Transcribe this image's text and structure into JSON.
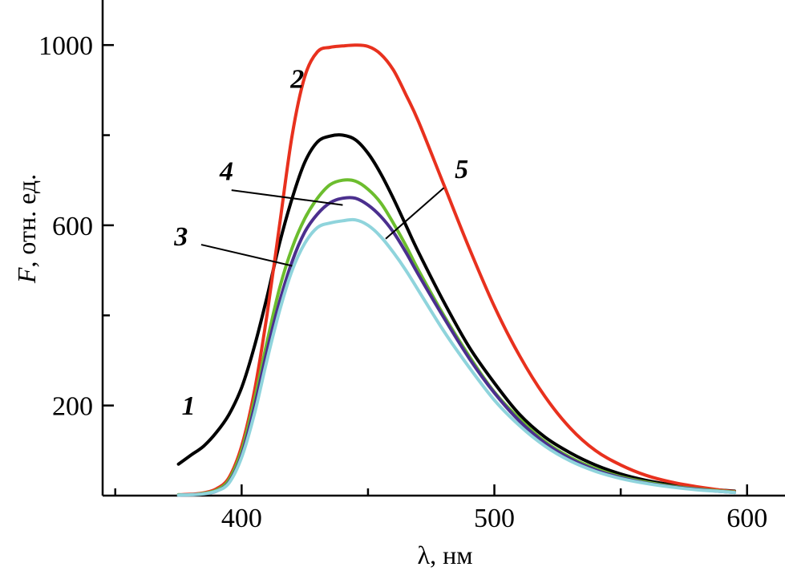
{
  "chart_data": {
    "type": "line",
    "title": "",
    "xlabel": "λ, нм",
    "ylabel_italic": "F",
    "ylabel_rest": ", отн. ед.",
    "xlim": [
      345,
      615
    ],
    "ylim": [
      0,
      1100
    ],
    "x_ticks": [
      400,
      500,
      600
    ],
    "x_minor_ticks": [
      350,
      450,
      550
    ],
    "y_ticks": [
      200,
      600,
      1000
    ],
    "y_minor_ticks": [
      400,
      800
    ],
    "grid": false,
    "series": [
      {
        "name": "1",
        "color": "#000000",
        "x": [
          375,
          380,
          385,
          390,
          395,
          400,
          405,
          410,
          415,
          420,
          425,
          430,
          435,
          440,
          445,
          450,
          455,
          460,
          465,
          470,
          480,
          490,
          500,
          510,
          520,
          530,
          540,
          550,
          560,
          570,
          580,
          590,
          595
        ],
        "y": [
          70,
          90,
          110,
          140,
          180,
          240,
          330,
          440,
          560,
          660,
          740,
          785,
          798,
          800,
          790,
          760,
          715,
          660,
          600,
          540,
          430,
          330,
          250,
          180,
          130,
          95,
          68,
          48,
          34,
          24,
          17,
          12,
          10
        ]
      },
      {
        "name": "2",
        "color": "#e8311e",
        "x": [
          375,
          380,
          385,
          390,
          395,
          400,
          405,
          410,
          415,
          420,
          425,
          430,
          435,
          440,
          445,
          450,
          455,
          460,
          465,
          470,
          480,
          490,
          500,
          510,
          520,
          530,
          540,
          550,
          560,
          570,
          580,
          590,
          595
        ],
        "y": [
          2,
          3,
          6,
          15,
          40,
          110,
          230,
          400,
          600,
          800,
          930,
          985,
          995,
          998,
          1000,
          997,
          980,
          945,
          890,
          830,
          690,
          550,
          420,
          310,
          220,
          150,
          100,
          68,
          45,
          30,
          20,
          12,
          9
        ]
      },
      {
        "name": "3",
        "color": "#6cbd2e",
        "x": [
          375,
          380,
          385,
          390,
          395,
          400,
          405,
          410,
          415,
          420,
          425,
          430,
          435,
          440,
          445,
          450,
          455,
          460,
          465,
          470,
          480,
          490,
          500,
          510,
          520,
          530,
          540,
          550,
          560,
          570,
          580,
          590,
          595
        ],
        "y": [
          2,
          2,
          5,
          12,
          35,
          100,
          210,
          340,
          460,
          550,
          615,
          660,
          690,
          700,
          698,
          680,
          650,
          605,
          555,
          500,
          400,
          310,
          230,
          170,
          120,
          85,
          60,
          42,
          30,
          21,
          15,
          10,
          8
        ]
      },
      {
        "name": "4",
        "color": "#4b2f8e",
        "x": [
          375,
          380,
          385,
          390,
          395,
          400,
          405,
          410,
          415,
          420,
          425,
          430,
          435,
          440,
          445,
          450,
          455,
          460,
          465,
          470,
          480,
          490,
          500,
          510,
          520,
          530,
          540,
          550,
          560,
          570,
          580,
          590,
          595
        ],
        "y": [
          1,
          2,
          4,
          10,
          30,
          90,
          195,
          320,
          430,
          520,
          585,
          625,
          650,
          660,
          660,
          645,
          620,
          585,
          540,
          490,
          395,
          305,
          228,
          165,
          117,
          82,
          57,
          40,
          28,
          20,
          14,
          9,
          7
        ]
      },
      {
        "name": "5",
        "color": "#8fd4dc",
        "x": [
          375,
          380,
          385,
          390,
          395,
          400,
          405,
          410,
          415,
          420,
          425,
          430,
          435,
          440,
          445,
          450,
          455,
          460,
          465,
          470,
          480,
          490,
          500,
          510,
          520,
          530,
          540,
          550,
          560,
          570,
          580,
          590,
          595
        ],
        "y": [
          1,
          2,
          4,
          10,
          28,
          85,
          180,
          300,
          410,
          500,
          560,
          595,
          605,
          610,
          612,
          600,
          575,
          540,
          500,
          455,
          365,
          285,
          212,
          155,
          110,
          77,
          54,
          38,
          27,
          19,
          13,
          9,
          7
        ]
      }
    ],
    "annotations": [
      {
        "text": "1",
        "x": 379,
        "y": 180,
        "target": null
      },
      {
        "text": "2",
        "x": 422,
        "y": 905,
        "target": null
      },
      {
        "text": "4",
        "x": 394,
        "y": 700,
        "tx": 396,
        "ty": 678,
        "target": [
          440,
          645
        ]
      },
      {
        "text": "3",
        "x": 376,
        "y": 555,
        "tx": 384,
        "ty": 557,
        "target": [
          420,
          510
        ]
      },
      {
        "text": "5",
        "x": 487,
        "y": 705,
        "tx": 480,
        "ty": 683,
        "target": [
          457,
          570
        ]
      }
    ]
  }
}
